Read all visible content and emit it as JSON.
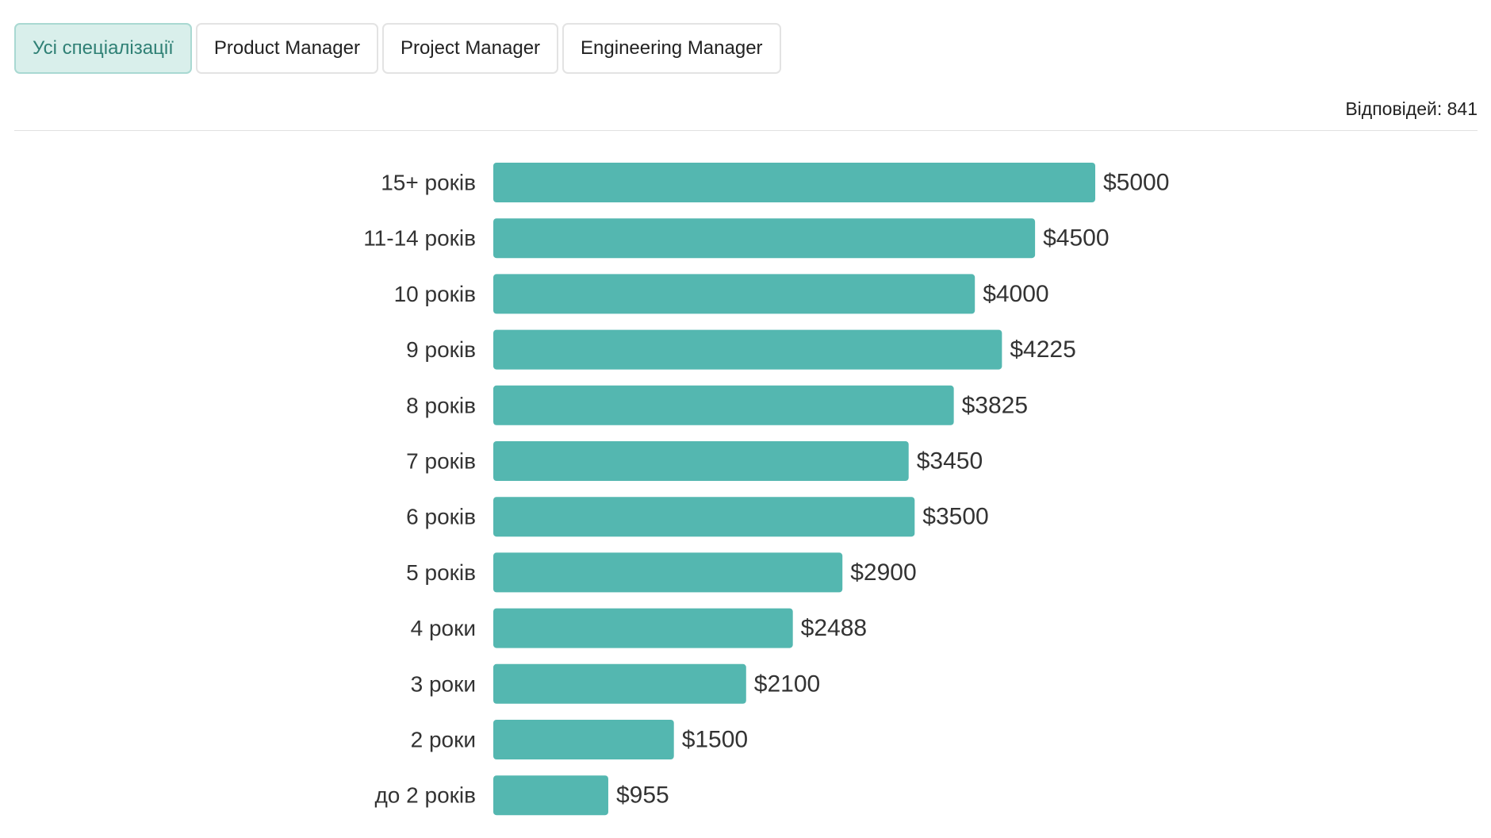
{
  "tabs": [
    {
      "label": "Усі спеціалізації",
      "active": true
    },
    {
      "label": "Product Manager",
      "active": false
    },
    {
      "label": "Project Manager",
      "active": false
    },
    {
      "label": "Engineering Manager",
      "active": false
    }
  ],
  "responses_label": "Відповідей: 841",
  "colors": {
    "bar": "#54b7b0",
    "active_tab_bg": "#d9efeb",
    "active_tab_text": "#2f8075"
  },
  "chart_data": {
    "type": "bar",
    "orientation": "horizontal",
    "categories": [
      "15+ років",
      "11-14 років",
      "10 років",
      "9 років",
      "8 років",
      "7 років",
      "6 років",
      "5 років",
      "4 роки",
      "3 роки",
      "2 роки",
      "до 2 років"
    ],
    "values": [
      5000,
      4500,
      4000,
      4225,
      3825,
      3450,
      3500,
      2900,
      2488,
      2100,
      1500,
      955
    ],
    "value_labels": [
      "$5000",
      "$4500",
      "$4000",
      "$4225",
      "$3825",
      "$3450",
      "$3500",
      "$2900",
      "$2488",
      "$2100",
      "$1500",
      "$955"
    ],
    "title": "",
    "xlabel": "",
    "ylabel": "",
    "xlim": [
      0,
      5000
    ],
    "grid": false,
    "legend": false
  }
}
